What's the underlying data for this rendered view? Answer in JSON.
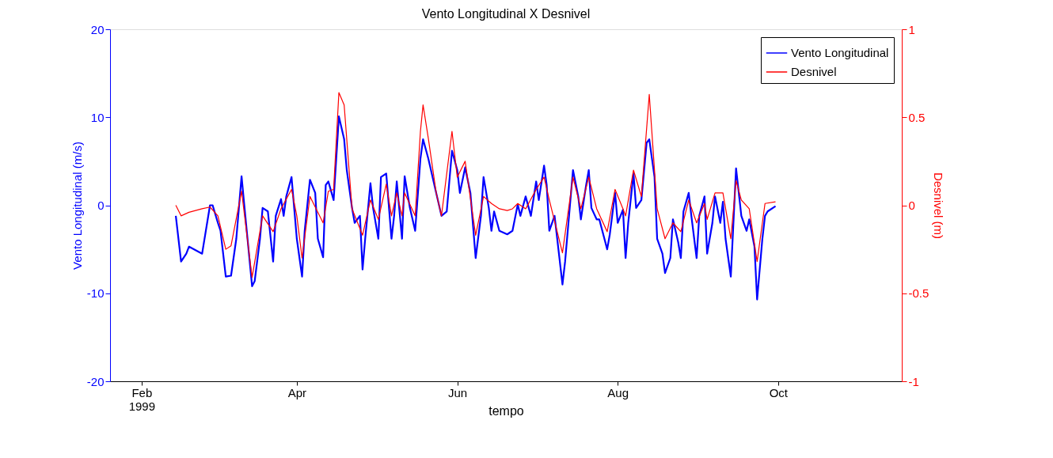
{
  "chart_data": {
    "type": "line",
    "title": "Vento Longitudinal X Desnivel",
    "xlabel": "tempo",
    "ylabel": "Vento Longitudinal (m/s)",
    "y2label": "Desnivel (m)",
    "xlim": [
      "1999-01-20",
      "1999-11-17"
    ],
    "xticks": [
      {
        "value": "1999-02-01",
        "label": "Feb\n1999"
      },
      {
        "value": "1999-04-01",
        "label": "Apr"
      },
      {
        "value": "1999-06-01",
        "label": "Jun"
      },
      {
        "value": "1999-08-01",
        "label": "Aug"
      },
      {
        "value": "1999-10-01",
        "label": "Oct"
      }
    ],
    "ylim": [
      -20,
      20
    ],
    "yticks": [
      -20,
      -10,
      0,
      10,
      20
    ],
    "y2lim": [
      -1,
      1
    ],
    "y2ticks": [
      -1,
      -0.5,
      0,
      0.5,
      1
    ],
    "legend": "top right",
    "grid": false,
    "series": [
      {
        "name": "Vento Longitudinal",
        "color": "#0000ff",
        "x": [
          "1999-02-14",
          "1999-02-16",
          "1999-02-18",
          "1999-02-19",
          "1999-02-24",
          "1999-02-27",
          "1999-02-28",
          "1999-03-02",
          "1999-03-03",
          "1999-03-05",
          "1999-03-07",
          "1999-03-09",
          "1999-03-11",
          "1999-03-12",
          "1999-03-15",
          "1999-03-16",
          "1999-03-18",
          "1999-03-19",
          "1999-03-21",
          "1999-03-23",
          "1999-03-24",
          "1999-03-26",
          "1999-03-27",
          "1999-03-28",
          "1999-03-30",
          "1999-04-01",
          "1999-04-03",
          "1999-04-04",
          "1999-04-06",
          "1999-04-08",
          "1999-04-09",
          "1999-04-11",
          "1999-04-12",
          "1999-04-13",
          "1999-04-15",
          "1999-04-17",
          "1999-04-19",
          "1999-04-20",
          "1999-04-22",
          "1999-04-23",
          "1999-04-25",
          "1999-04-26",
          "1999-04-27",
          "1999-04-29",
          "1999-04-30",
          "1999-05-02",
          "1999-05-03",
          "1999-05-05",
          "1999-05-07",
          "1999-05-08",
          "1999-05-09",
          "1999-05-11",
          "1999-05-12",
          "1999-05-14",
          "1999-05-16",
          "1999-05-18",
          "1999-05-19",
          "1999-05-21",
          "1999-05-24",
          "1999-05-26",
          "1999-05-28",
          "1999-05-30",
          "1999-06-01",
          "1999-06-02",
          "1999-06-04",
          "1999-06-06",
          "1999-06-08",
          "1999-06-10",
          "1999-06-11",
          "1999-06-13",
          "1999-06-14",
          "1999-06-15",
          "1999-06-17",
          "1999-06-20",
          "1999-06-22",
          "1999-06-24",
          "1999-06-25",
          "1999-06-27",
          "1999-06-29",
          "1999-07-01",
          "1999-07-02",
          "1999-07-04",
          "1999-07-05",
          "1999-07-06",
          "1999-07-08",
          "1999-07-11",
          "1999-07-12",
          "1999-07-15",
          "1999-07-17",
          "1999-07-18",
          "1999-07-20",
          "1999-07-21",
          "1999-07-22",
          "1999-07-24",
          "1999-07-25",
          "1999-07-28",
          "1999-07-29",
          "1999-07-31",
          "1999-08-01",
          "1999-08-03",
          "1999-08-04",
          "1999-08-05",
          "1999-08-07",
          "1999-08-08",
          "1999-08-10",
          "1999-08-12",
          "1999-08-13",
          "1999-08-15",
          "1999-08-16",
          "1999-08-18",
          "1999-08-19",
          "1999-08-21",
          "1999-08-22",
          "1999-08-24",
          "1999-08-25",
          "1999-08-26",
          "1999-08-28",
          "1999-08-29",
          "1999-08-31",
          "1999-09-01",
          "1999-09-03",
          "1999-09-04",
          "1999-09-06",
          "1999-09-07",
          "1999-09-09",
          "1999-09-10",
          "1999-09-11",
          "1999-09-13",
          "1999-09-15",
          "1999-09-17",
          "1999-09-19",
          "1999-09-20",
          "1999-09-22",
          "1999-09-23",
          "1999-09-25",
          "1999-09-26",
          "1999-09-27",
          "1999-09-30"
        ],
        "values": [
          -1.2,
          -6.4,
          -5.5,
          -4.7,
          -5.5,
          0,
          0,
          -2,
          -2.9,
          -8.1,
          -8,
          -3.8,
          3.3,
          0.1,
          -9.2,
          -8.6,
          -3.8,
          -0.3,
          -0.7,
          -6.4,
          -1.2,
          0.7,
          -1.2,
          1,
          3.2,
          -3.8,
          -8.1,
          -2.9,
          2.9,
          1.4,
          -3.8,
          -5.9,
          2.3,
          2.7,
          0.6,
          10.1,
          7.5,
          4,
          -0.3,
          -2,
          -1.2,
          -7.3,
          -3.8,
          2.5,
          -0.3,
          -3.8,
          3.2,
          3.6,
          -3.8,
          -1.2,
          2.7,
          -3.8,
          3.3,
          -0.3,
          -2.9,
          5.3,
          7.5,
          5.3,
          1.4,
          -1.2,
          -0.7,
          6.2,
          4,
          1.4,
          4.3,
          1.4,
          -6,
          -1.2,
          3.2,
          -0.3,
          -2.9,
          -0.7,
          -2.9,
          -3.3,
          -2.9,
          0.1,
          -1.2,
          1,
          -1.2,
          2.7,
          0.6,
          4.5,
          2.3,
          -2.9,
          -1.2,
          -9,
          -6.4,
          4,
          1,
          -1.6,
          2.3,
          4,
          -0.3,
          -1.6,
          -1.6,
          -5,
          -3.3,
          1.4,
          -2,
          -0.5,
          -6,
          -2,
          3.6,
          -0.3,
          0.6,
          7.1,
          7.5,
          3.2,
          -3.8,
          -5.5,
          -7.7,
          -6,
          -1.6,
          -4.2,
          -6,
          -0.7,
          1.4,
          -1.2,
          -6,
          -1.2,
          1,
          -5.5,
          -2,
          1,
          -2,
          0.4,
          -3.8,
          -8.1,
          4.2,
          -1.2,
          -2.9,
          -1.6,
          -4.7,
          -10.7,
          -3.8,
          -1.2,
          -0.7,
          -0.1
        ]
      },
      {
        "name": "Desnivel",
        "color": "#ff0000",
        "axis": "y2",
        "x": [
          "1999-02-14",
          "1999-02-16",
          "1999-02-19",
          "1999-02-24",
          "1999-02-27",
          "1999-03-02",
          "1999-03-05",
          "1999-03-07",
          "1999-03-11",
          "1999-03-15",
          "1999-03-19",
          "1999-03-23",
          "1999-03-26",
          "1999-03-30",
          "1999-04-01",
          "1999-04-03",
          "1999-04-06",
          "1999-04-11",
          "1999-04-13",
          "1999-04-15",
          "1999-04-17",
          "1999-04-19",
          "1999-04-22",
          "1999-04-26",
          "1999-04-29",
          "1999-05-02",
          "1999-05-05",
          "1999-05-07",
          "1999-05-09",
          "1999-05-11",
          "1999-05-12",
          "1999-05-16",
          "1999-05-18",
          "1999-05-19",
          "1999-05-21",
          "1999-05-24",
          "1999-05-26",
          "1999-05-30",
          "1999-06-01",
          "1999-06-04",
          "1999-06-08",
          "1999-06-11",
          "1999-06-14",
          "1999-06-17",
          "1999-06-20",
          "1999-06-22",
          "1999-06-24",
          "1999-06-27",
          "1999-07-01",
          "1999-07-04",
          "1999-07-06",
          "1999-07-11",
          "1999-07-15",
          "1999-07-18",
          "1999-07-21",
          "1999-07-24",
          "1999-07-28",
          "1999-07-31",
          "1999-08-03",
          "1999-08-04",
          "1999-08-07",
          "1999-08-10",
          "1999-08-13",
          "1999-08-16",
          "1999-08-19",
          "1999-08-22",
          "1999-08-25",
          "1999-08-28",
          "1999-08-31",
          "1999-09-03",
          "1999-09-04",
          "1999-09-07",
          "1999-09-10",
          "1999-09-13",
          "1999-09-15",
          "1999-09-17",
          "1999-09-20",
          "1999-09-23",
          "1999-09-26",
          "1999-09-30"
        ],
        "values": [
          0,
          -0.06,
          -0.04,
          -0.02,
          -0.01,
          -0.06,
          -0.25,
          -0.23,
          0.08,
          -0.41,
          -0.06,
          -0.15,
          -0.02,
          0.09,
          -0.06,
          -0.3,
          0.05,
          -0.1,
          0.08,
          0.09,
          0.64,
          0.57,
          -0.02,
          -0.17,
          0.03,
          -0.08,
          0.12,
          -0.06,
          0.07,
          -0.06,
          0.07,
          -0.06,
          0.42,
          0.57,
          0.38,
          0.07,
          -0.06,
          0.42,
          0.16,
          0.25,
          -0.17,
          0.05,
          0.01,
          -0.02,
          -0.03,
          -0.02,
          0.01,
          -0.02,
          0.09,
          0.16,
          0.03,
          -0.27,
          0.16,
          -0.02,
          0.16,
          -0.02,
          -0.15,
          0.09,
          -0.02,
          -0.06,
          0.2,
          0.05,
          0.63,
          -0.02,
          -0.19,
          -0.1,
          -0.15,
          0.03,
          -0.1,
          0.01,
          -0.08,
          0.07,
          0.07,
          -0.19,
          0.14,
          0.03,
          -0.02,
          -0.32,
          0.01,
          0.02
        ]
      }
    ]
  }
}
